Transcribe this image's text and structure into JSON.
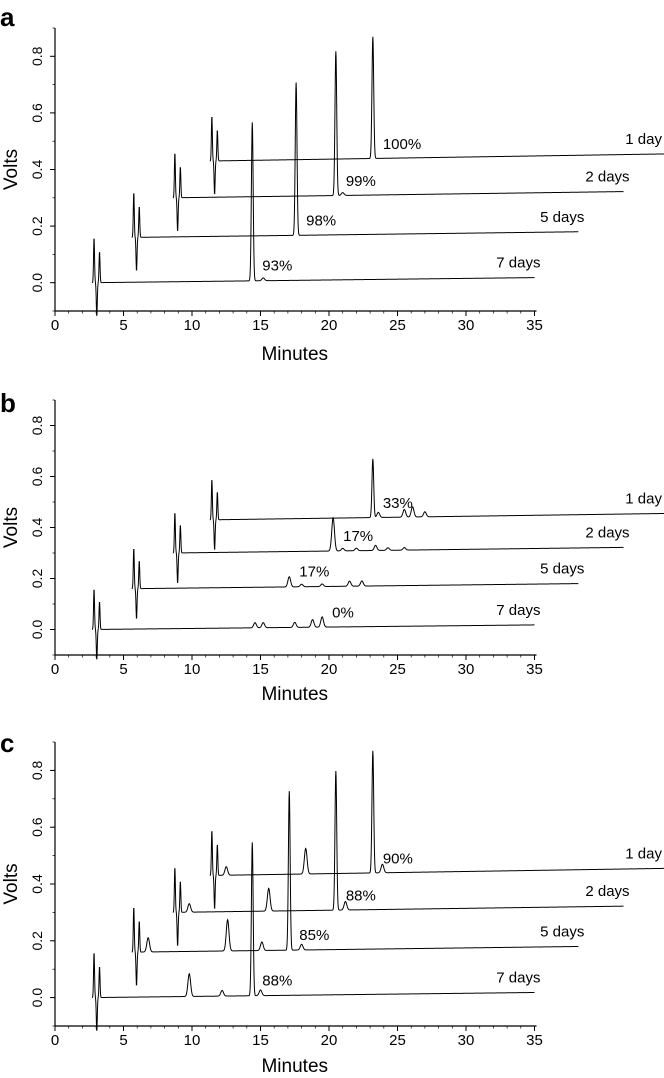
{
  "chart_data": [
    {
      "type": "line",
      "panel": "a",
      "xlabel": "Minutes",
      "ylabel": "Volts",
      "xlim": [
        0,
        35
      ],
      "ylim": [
        -0.1,
        0.9
      ],
      "xticks": [
        "0",
        "5",
        "10",
        "15",
        "20",
        "25",
        "30",
        "35"
      ],
      "yticks": [
        "0.0",
        "0.2",
        "0.4",
        "0.6",
        "0.8"
      ],
      "series": [
        {
          "name": "1 day",
          "percent": "100%",
          "injection_min": 11.6,
          "peaks": [
            {
              "x": 23.2,
              "y": 0.86
            }
          ]
        },
        {
          "name": "2 days",
          "percent": "99%",
          "injection_min": 8.9,
          "peaks": [
            {
              "x": 20.5,
              "y": 0.81
            },
            {
              "x": 21.0,
              "y": 0.31
            }
          ]
        },
        {
          "name": "5 days",
          "percent": "98%",
          "injection_min": 5.9,
          "peaks": [
            {
              "x": 17.6,
              "y": 0.7
            },
            {
              "x": 18.3,
              "y": 0.16
            }
          ]
        },
        {
          "name": "7 days",
          "percent": "93%",
          "injection_min": 3.0,
          "peaks": [
            {
              "x": 14.4,
              "y": 0.56
            },
            {
              "x": 15.2,
              "y": 0.01
            }
          ]
        }
      ]
    },
    {
      "type": "line",
      "panel": "b",
      "xlabel": "Minutes",
      "ylabel": "Volts",
      "xlim": [
        0,
        35
      ],
      "ylim": [
        -0.1,
        0.9
      ],
      "xticks": [
        "0",
        "5",
        "10",
        "15",
        "20",
        "25",
        "30",
        "35"
      ],
      "yticks": [
        "0.0",
        "0.2",
        "0.4",
        "0.6",
        "0.8"
      ],
      "series": [
        {
          "name": "1 day",
          "percent": "33%",
          "injection_min": 11.6,
          "peaks": [
            {
              "x": 23.2,
              "y": 0.66
            },
            {
              "x": 23.6,
              "y": 0.45
            },
            {
              "x": 25.5,
              "y": 0.46
            },
            {
              "x": 26.1,
              "y": 0.47
            },
            {
              "x": 27.0,
              "y": 0.45
            }
          ]
        },
        {
          "name": "2 days",
          "percent": "17%",
          "injection_min": 8.9,
          "peaks": [
            {
              "x": 20.3,
              "y": 0.43
            },
            {
              "x": 21.0,
              "y": 0.31
            },
            {
              "x": 22.0,
              "y": 0.31
            },
            {
              "x": 23.4,
              "y": 0.32
            },
            {
              "x": 24.3,
              "y": 0.31
            },
            {
              "x": 25.5,
              "y": 0.31
            }
          ]
        },
        {
          "name": "5 days",
          "percent": "17%",
          "injection_min": 5.9,
          "peaks": [
            {
              "x": 17.1,
              "y": 0.2
            },
            {
              "x": 18.0,
              "y": 0.17
            },
            {
              "x": 19.5,
              "y": 0.17
            },
            {
              "x": 21.5,
              "y": 0.18
            },
            {
              "x": 22.4,
              "y": 0.18
            }
          ]
        },
        {
          "name": "7 days",
          "percent": "0%",
          "injection_min": 3.0,
          "peaks": [
            {
              "x": 14.6,
              "y": 0.02
            },
            {
              "x": 15.2,
              "y": 0.02
            },
            {
              "x": 17.5,
              "y": 0.02
            },
            {
              "x": 18.8,
              "y": 0.03
            },
            {
              "x": 19.5,
              "y": 0.04
            }
          ]
        }
      ]
    },
    {
      "type": "line",
      "panel": "c",
      "xlabel": "Minutes",
      "ylabel": "Volts",
      "xlim": [
        0,
        35
      ],
      "ylim": [
        -0.1,
        0.9
      ],
      "xticks": [
        "0",
        "5",
        "10",
        "15",
        "20",
        "25",
        "30",
        "35"
      ],
      "yticks": [
        "0.0",
        "0.2",
        "0.4",
        "0.6",
        "0.8"
      ],
      "series": [
        {
          "name": "1 day",
          "percent": "90%",
          "injection_min": 11.6,
          "peaks": [
            {
              "x": 12.5,
              "y": 0.46
            },
            {
              "x": 18.3,
              "y": 0.52
            },
            {
              "x": 23.2,
              "y": 0.86
            },
            {
              "x": 23.9,
              "y": 0.46
            }
          ]
        },
        {
          "name": "2 days",
          "percent": "88%",
          "injection_min": 8.9,
          "peaks": [
            {
              "x": 9.8,
              "y": 0.33
            },
            {
              "x": 15.6,
              "y": 0.38
            },
            {
              "x": 20.5,
              "y": 0.79
            },
            {
              "x": 21.2,
              "y": 0.33
            }
          ]
        },
        {
          "name": "5 days",
          "percent": "85%",
          "injection_min": 5.9,
          "peaks": [
            {
              "x": 6.8,
              "y": 0.21
            },
            {
              "x": 12.6,
              "y": 0.27
            },
            {
              "x": 15.1,
              "y": 0.19
            },
            {
              "x": 17.1,
              "y": 0.72
            },
            {
              "x": 18.0,
              "y": 0.18
            }
          ]
        },
        {
          "name": "7 days",
          "percent": "88%",
          "injection_min": 3.0,
          "peaks": [
            {
              "x": 9.8,
              "y": 0.08
            },
            {
              "x": 12.2,
              "y": 0.02
            },
            {
              "x": 14.4,
              "y": 0.54
            },
            {
              "x": 15.0,
              "y": 0.02
            }
          ]
        }
      ]
    }
  ]
}
